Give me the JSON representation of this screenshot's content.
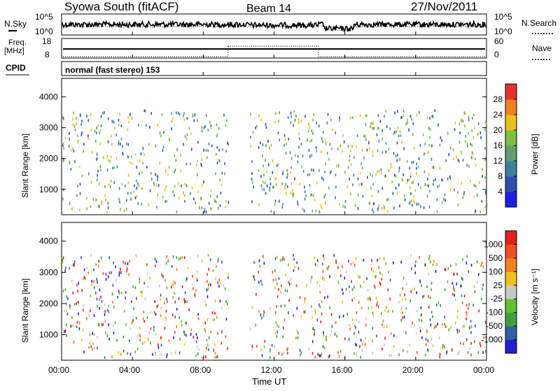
{
  "header": {
    "station": "Syowa South (fitACF)",
    "beam": "Beam 14",
    "date": "27/Nov/2011"
  },
  "strip_labels": {
    "left_nsky": "N.Sky",
    "left_freq": "Freq.",
    "left_freq_unit": "[MHz]",
    "left_cpid": "CPID",
    "right_nsearch": "N.Search",
    "right_nave": "Nave",
    "nsky_ticks": [
      "10^5",
      "10^0"
    ],
    "freq_ticks": [
      "18",
      "8"
    ],
    "nave_ticks": [
      "60",
      "0"
    ],
    "cpid_text": "normal (fast stereo) 153"
  },
  "x_axis": {
    "label": "Time UT",
    "ticks": [
      "00:00",
      "04:00",
      "08:00",
      "12:00",
      "16:00",
      "20:00",
      "00:00"
    ]
  },
  "panels": {
    "power": {
      "ylabel": "Slant Range [km]",
      "cbar_label": "Power [dB]",
      "cbar_ticks": [
        "28",
        "24",
        "20",
        "16",
        "12",
        "8",
        "4"
      ]
    },
    "velocity": {
      "ylabel": "Slant Range [km]",
      "cbar_label": "Velocity [m s⁻¹]",
      "cbar_ticks": [
        "1000",
        "500",
        "100",
        "25",
        "-25",
        "-100",
        "-500",
        "-1000"
      ]
    }
  },
  "colors": {
    "power_scale": [
      "#1f1fe0",
      "#2f4fb0",
      "#3f7fa0",
      "#5f9f6f",
      "#7fbf3f",
      "#e8c020",
      "#f08020",
      "#e83030"
    ],
    "velocity_scale": [
      "#2020d0",
      "#3060a0",
      "#40a040",
      "#60c030",
      "#c8c8c8",
      "#f0c020",
      "#f08020",
      "#f05020",
      "#e02020"
    ]
  },
  "chart_data": [
    {
      "type": "line",
      "name": "N.Sky / N.Search",
      "x_range_hours": [
        0,
        24
      ],
      "y_ticks": [
        "10^5",
        "10^0"
      ]
    },
    {
      "type": "line",
      "name": "Freq / Nave",
      "x_range_hours": [
        0,
        24
      ],
      "freq_mhz_ylim": [
        8,
        18
      ],
      "nave_ylim": [
        0,
        60
      ]
    },
    {
      "type": "heatmap",
      "name": "power",
      "x_range_hours": [
        0,
        24
      ],
      "ylim_km": [
        180,
        4600
      ],
      "y_ticks": [
        1000,
        2000,
        3000,
        4000
      ],
      "zlim": [
        0,
        30
      ],
      "note_gap_hours": [
        9.5,
        10.5
      ]
    },
    {
      "type": "heatmap",
      "name": "velocity",
      "x_range_hours": [
        0,
        24
      ],
      "ylim_km": [
        180,
        4600
      ],
      "y_ticks": [
        1000,
        2000,
        3000,
        4000
      ],
      "zlim": [
        -1000,
        1000
      ]
    }
  ]
}
